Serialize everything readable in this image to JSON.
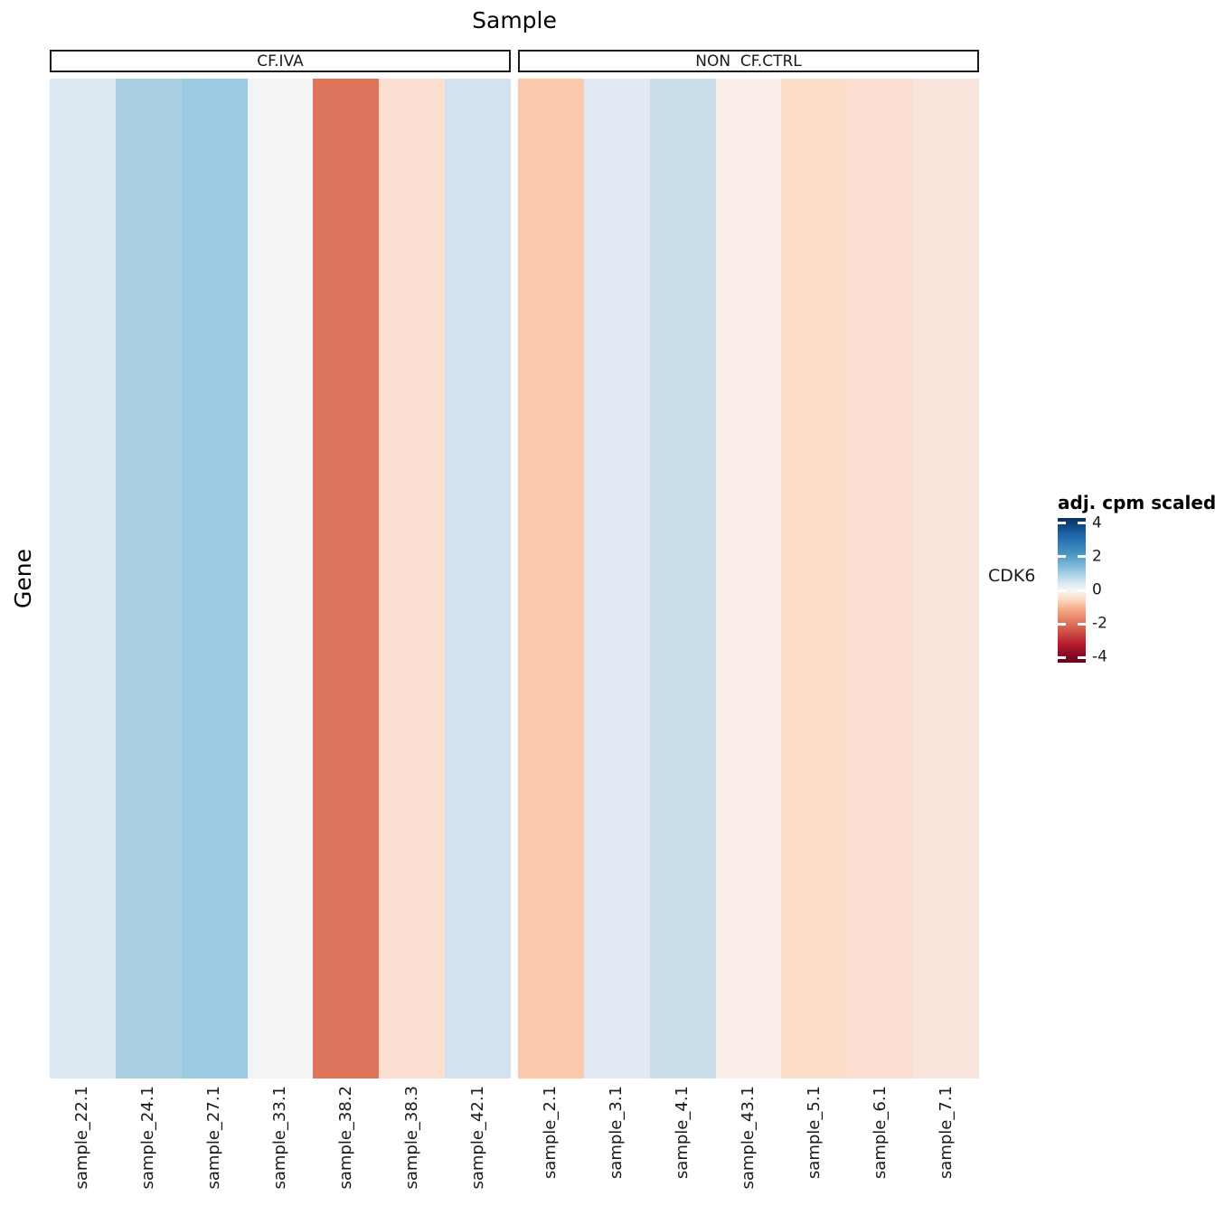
{
  "title": "Sample",
  "y_axis_title": "Gene",
  "row_label": "CDK6",
  "facets": [
    {
      "label": "CF.IVA",
      "samples": [
        "sample_22.1",
        "sample_24.1",
        "sample_27.1",
        "sample_33.1",
        "sample_38.2",
        "sample_38.3",
        "sample_42.1"
      ],
      "colors": [
        "#dce8f1",
        "#abd0e3",
        "#9ccae3",
        "#f2f4f6",
        "#dd745c",
        "#fbdfd1",
        "#d2e2ef"
      ],
      "values": [
        0.9,
        1.9,
        2.1,
        0.05,
        -2.6,
        -0.8,
        1.1
      ]
    },
    {
      "label": "NON  CF.CTRL",
      "samples": [
        "sample_2.1",
        "sample_3.1",
        "sample_4.1",
        "sample_43.1",
        "sample_5.1",
        "sample_6.1",
        "sample_7.1"
      ],
      "colors": [
        "#fbc9ad",
        "#e1eaf2",
        "#cbdfeb",
        "#f9eee8",
        "#fadcc9",
        "#fbe0d2",
        "#f9e5dc"
      ],
      "values": [
        -1.5,
        0.75,
        1.25,
        -0.3,
        -1.0,
        -0.85,
        -0.6
      ]
    }
  ],
  "legend": {
    "title": "adj. cpm scaled",
    "tick_labels": [
      "4",
      "2",
      "0",
      "-2",
      "-4"
    ],
    "tick_values": [
      4,
      2,
      0,
      -2,
      -4
    ],
    "colormap": "RdBu",
    "top_color": "#053061",
    "mid_color": "#f7f7f7",
    "bottom_color": "#67001f"
  },
  "chart_data": {
    "type": "heatmap",
    "title": "Sample",
    "xlabel": "Sample",
    "ylabel": "Gene",
    "rows": [
      "CDK6"
    ],
    "column_groups": [
      {
        "name": "CF.IVA",
        "columns": [
          "sample_22.1",
          "sample_24.1",
          "sample_27.1",
          "sample_33.1",
          "sample_38.2",
          "sample_38.3",
          "sample_42.1"
        ]
      },
      {
        "name": "NON  CF.CTRL",
        "columns": [
          "sample_2.1",
          "sample_3.1",
          "sample_4.1",
          "sample_43.1",
          "sample_5.1",
          "sample_6.1",
          "sample_7.1"
        ]
      }
    ],
    "columns": [
      "sample_22.1",
      "sample_24.1",
      "sample_27.1",
      "sample_33.1",
      "sample_38.2",
      "sample_38.3",
      "sample_42.1",
      "sample_2.1",
      "sample_3.1",
      "sample_4.1",
      "sample_43.1",
      "sample_5.1",
      "sample_6.1",
      "sample_7.1"
    ],
    "values": [
      [
        0.9,
        1.9,
        2.1,
        0.05,
        -2.6,
        -0.8,
        1.1,
        -1.5,
        0.75,
        1.25,
        -0.3,
        -1.0,
        -0.85,
        -0.6
      ]
    ],
    "cell_colors": [
      [
        "#dce8f1",
        "#abd0e3",
        "#9ccae3",
        "#f2f4f6",
        "#dd745c",
        "#fbdfd1",
        "#d2e2ef",
        "#fbc9ad",
        "#e1eaf2",
        "#cbdfeb",
        "#f9eee8",
        "#fadcc9",
        "#fbe0d2",
        "#f9e5dc"
      ]
    ],
    "colorscale": {
      "name": "RdBu",
      "legend_title": "adj. cpm scaled",
      "domain": [
        -4.3,
        4.3
      ],
      "ticks": [
        4,
        2,
        0,
        -2,
        -4
      ]
    },
    "legend_position": "right",
    "grid": false,
    "x_tick_rotation": 90,
    "facetted": true
  }
}
